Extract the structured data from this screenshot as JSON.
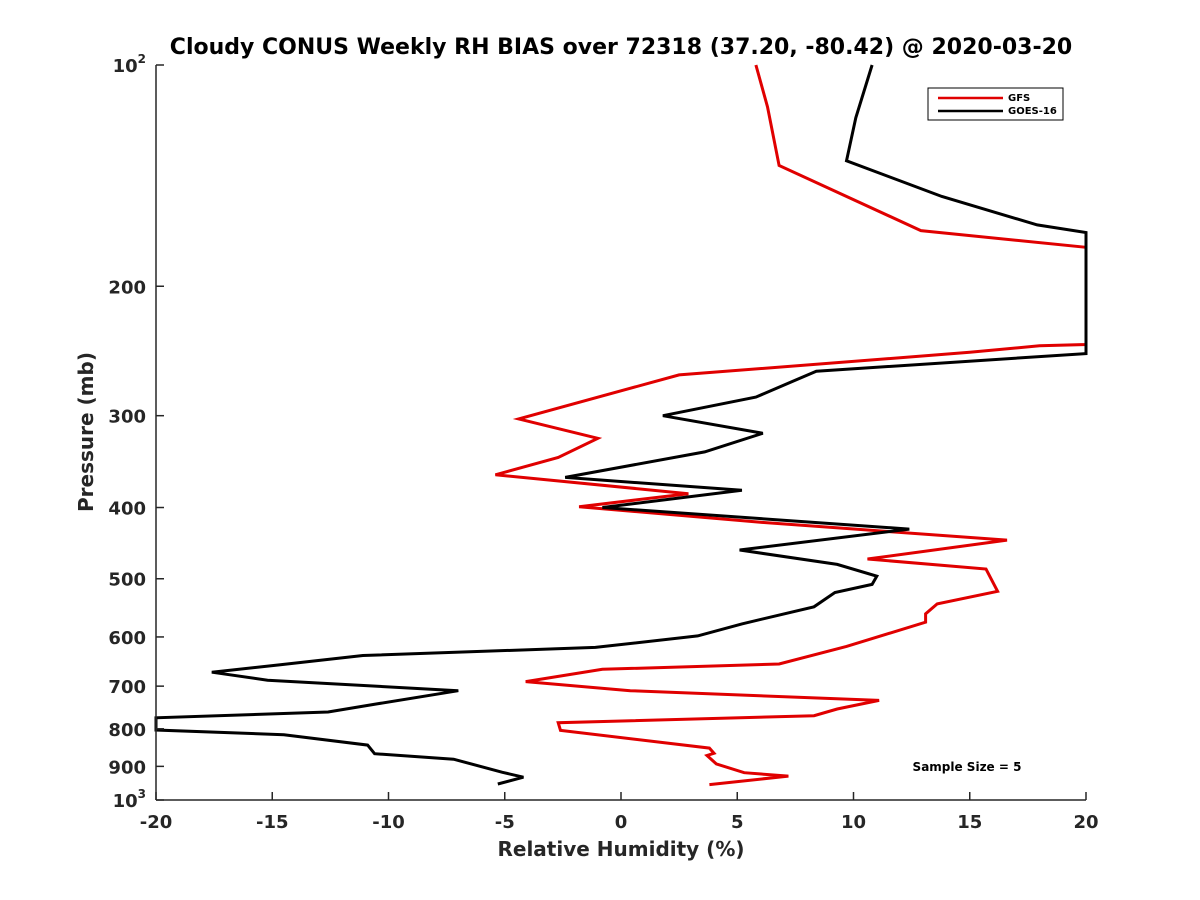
{
  "chart_data": {
    "type": "line",
    "title": "Cloudy CONUS Weekly RH BIAS over 72318 (37.20, -80.42) @ 2020-03-20",
    "xlabel": "Relative Humidity (%)",
    "ylabel": "Pressure (mb)",
    "xlim": [
      -20,
      20
    ],
    "ylim": [
      100,
      1000
    ],
    "yscale": "log",
    "y_reversed": true,
    "xticks": [
      -20,
      -15,
      -10,
      -5,
      0,
      5,
      10,
      15,
      20
    ],
    "xtick_labels": [
      "-20",
      "-15",
      "-10",
      "-5",
      "0",
      "5",
      "10",
      "15",
      "20"
    ],
    "yticks": [
      {
        "value": 100,
        "base": "10",
        "exp": "2"
      },
      {
        "value": 200,
        "label": "200"
      },
      {
        "value": 300,
        "label": "300"
      },
      {
        "value": 400,
        "label": "400"
      },
      {
        "value": 500,
        "label": "500"
      },
      {
        "value": 600,
        "label": "600"
      },
      {
        "value": 700,
        "label": "700"
      },
      {
        "value": 800,
        "label": "800"
      },
      {
        "value": 900,
        "label": "900"
      },
      {
        "value": 1000,
        "base": "10",
        "exp": "3"
      }
    ],
    "legend_position": "top-right",
    "annotation": "Sample Size = 5",
    "series": [
      {
        "name": "GFS",
        "color": "#e00000",
        "points": [
          [
            5.8,
            100
          ],
          [
            6.3,
            114
          ],
          [
            6.8,
            137
          ],
          [
            12.9,
            168
          ],
          [
            20.0,
            177
          ],
          [
            20.0,
            240
          ],
          [
            18.0,
            241
          ],
          [
            15.0,
            246
          ],
          [
            2.5,
            264
          ],
          [
            -4.4,
            303
          ],
          [
            -1.0,
            322
          ],
          [
            -2.7,
            342
          ],
          [
            -5.4,
            361
          ],
          [
            2.9,
            383
          ],
          [
            -1.8,
            399
          ],
          [
            6.0,
            419
          ],
          [
            16.6,
            443
          ],
          [
            10.6,
            470
          ],
          [
            15.7,
            485
          ],
          [
            16.2,
            520
          ],
          [
            13.6,
            541
          ],
          [
            13.1,
            558
          ],
          [
            13.1,
            573
          ],
          [
            9.7,
            618
          ],
          [
            6.8,
            653
          ],
          [
            -0.8,
            664
          ],
          [
            -4.1,
            690
          ],
          [
            0.4,
            710
          ],
          [
            11.1,
            732
          ],
          [
            9.3,
            752
          ],
          [
            8.3,
            768
          ],
          [
            -2.7,
            785
          ],
          [
            -2.6,
            804
          ],
          [
            3.8,
            850
          ],
          [
            4.0,
            864
          ],
          [
            3.7,
            870
          ],
          [
            4.1,
            893
          ],
          [
            5.3,
            918
          ],
          [
            7.2,
            928
          ],
          [
            3.8,
            953
          ]
        ]
      },
      {
        "name": "GOES-16",
        "color": "#000000",
        "points": [
          [
            10.8,
            100
          ],
          [
            10.1,
            118
          ],
          [
            9.7,
            135
          ],
          [
            13.8,
            151
          ],
          [
            17.9,
            165
          ],
          [
            20.0,
            169
          ],
          [
            20.0,
            247
          ],
          [
            8.4,
            261
          ],
          [
            5.8,
            283
          ],
          [
            1.8,
            300
          ],
          [
            6.1,
            317
          ],
          [
            3.6,
            336
          ],
          [
            -2.4,
            364
          ],
          [
            5.2,
            379
          ],
          [
            -0.8,
            400
          ],
          [
            12.4,
            428
          ],
          [
            5.1,
            457
          ],
          [
            9.3,
            478
          ],
          [
            11.0,
            496
          ],
          [
            10.8,
            509
          ],
          [
            9.2,
            522
          ],
          [
            8.3,
            546
          ],
          [
            5.2,
            576
          ],
          [
            3.3,
            598
          ],
          [
            -1.1,
            620
          ],
          [
            -11.1,
            636
          ],
          [
            -14.7,
            655
          ],
          [
            -17.6,
            670
          ],
          [
            -15.2,
            687
          ],
          [
            -7.0,
            710
          ],
          [
            -10.5,
            740
          ],
          [
            -12.6,
            759
          ],
          [
            -20.0,
            773
          ],
          [
            -20.0,
            803
          ],
          [
            -14.5,
            815
          ],
          [
            -10.9,
            842
          ],
          [
            -10.6,
            865
          ],
          [
            -7.2,
            880
          ],
          [
            -5.1,
            917
          ],
          [
            -4.2,
            931
          ],
          [
            -5.3,
            951
          ]
        ]
      }
    ]
  }
}
